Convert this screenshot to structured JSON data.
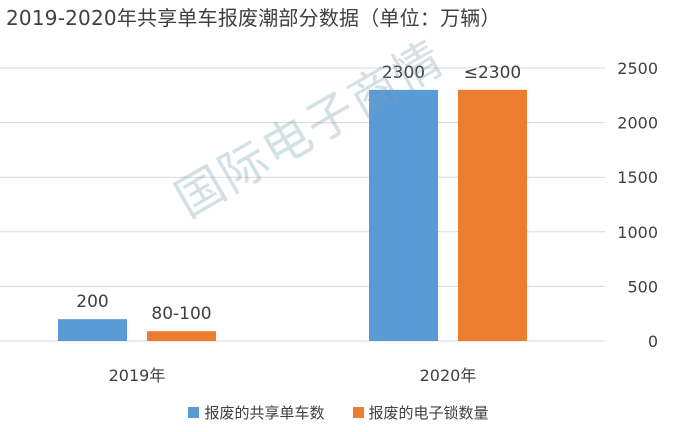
{
  "chart_data": {
    "type": "bar",
    "title": "2019-2020年共享单车报废潮部分数据（单位：万辆）",
    "categories": [
      "2019年",
      "2020年"
    ],
    "series": [
      {
        "name": "报废的共享单车数",
        "values": [
          200,
          2300
        ],
        "labels": [
          "200",
          "2300"
        ],
        "color": "#5B9BD5"
      },
      {
        "name": "报废的电子锁数量",
        "values": [
          90,
          2300
        ],
        "labels": [
          "80-100",
          "≤2300"
        ],
        "color": "#ED7D31"
      }
    ],
    "yticks": [
      "0",
      "500",
      "1000",
      "1500",
      "2000",
      "2500"
    ],
    "ylim": [
      0,
      2500
    ],
    "y_axis_side": "right",
    "grid": true,
    "legend_position": "bottom"
  },
  "watermark": "国际电子商情"
}
